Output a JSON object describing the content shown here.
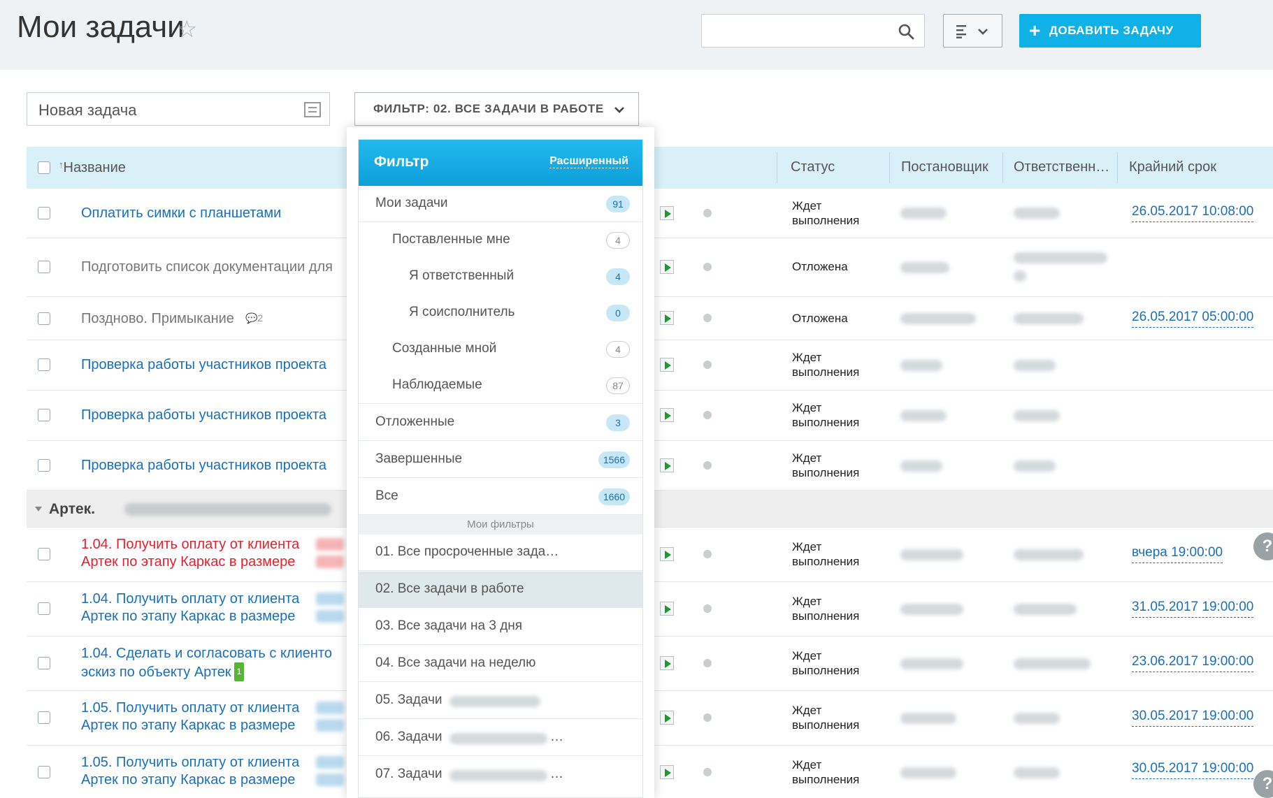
{
  "header": {
    "title": "Мои задачи",
    "add_button": "ДОБАВИТЬ ЗАДАЧУ",
    "search_placeholder": ""
  },
  "toolbar": {
    "new_task_placeholder": "Новая задача",
    "filter_label": "ФИЛЬТР: 02. ВСЕ ЗАДАЧИ В РАБОТЕ"
  },
  "table": {
    "columns": {
      "name": "Название",
      "status": "Статус",
      "creator": "Постановщик",
      "responsible": "Ответственн…",
      "deadline": "Крайний срок"
    },
    "rows": [
      {
        "name": "Оплатить симки с планшетами",
        "status": "Ждет выполнения",
        "deadline": "26.05.2017 10:08:00"
      },
      {
        "name": "Подготовить список документации для",
        "status": "Отложена",
        "deadline": ""
      },
      {
        "name": "Поздново. Примыкание",
        "comments": "2",
        "status": "Отложена",
        "deadline": "26.05.2017 05:00:00"
      },
      {
        "name": "Проверка работы участников проекта",
        "status": "Ждет выполнения",
        "deadline": ""
      },
      {
        "name": "Проверка работы участников проекта",
        "status": "Ждет выполнения",
        "deadline": ""
      },
      {
        "name": "Проверка работы участников проекта",
        "status": "Ждет выполнения",
        "deadline": ""
      }
    ],
    "group": {
      "name": "Артек."
    },
    "group_rows": [
      {
        "line1": "1.04. Получить оплату от клиента",
        "line2": "Артек по этапу Каркас в размере",
        "status": "Ждет выполнения",
        "deadline": "вчера 19:00:00"
      },
      {
        "line1": "1.04. Получить оплату от клиента",
        "line2": "Артек по этапу Каркас в размере",
        "status": "Ждет выполнения",
        "deadline": "31.05.2017 19:00:00"
      },
      {
        "line1": "1.04. Сделать и согласовать с клиенто",
        "line2": "эскиз по объекту Артек",
        "badge": "1",
        "status": "Ждет выполнения",
        "deadline": "23.06.2017 19:00:00"
      },
      {
        "line1": "1.05. Получить оплату от клиента",
        "line2": "Артек по этапу Каркас в размере",
        "status": "Ждет выполнения",
        "deadline": "30.05.2017 19:00:00"
      },
      {
        "line1": "1.05. Получить оплату от клиента",
        "line2": "Артек по этапу Каркас в размере",
        "status": "Ждет выполнения",
        "deadline": "30.05.2017 19:00:00"
      }
    ],
    "status_lines": {
      "wait1": "Ждет",
      "wait2": "выполнения",
      "deferred": "Отложена"
    }
  },
  "filter_menu": {
    "title": "Фильтр",
    "advanced": "Расширенный",
    "items": [
      {
        "label": "Мои задачи",
        "count": "91"
      },
      {
        "label": "Поставленные мне",
        "count": "4"
      },
      {
        "label": "Я ответственный",
        "count": "4"
      },
      {
        "label": "Я соисполнитель",
        "count": "0"
      },
      {
        "label": "Созданные мной",
        "count": "4"
      },
      {
        "label": "Наблюдаемые",
        "count": "87"
      },
      {
        "label": "Отложенные",
        "count": "3"
      },
      {
        "label": "Завершенные",
        "count": "1566"
      },
      {
        "label": "Все",
        "count": "1660"
      }
    ],
    "my_filters_label": "Мои фильтры",
    "my_filters": [
      "01. Все просроченные зада…",
      "02. Все задачи в работе",
      "03. Все задачи на 3 дня",
      "04. Все задачи на неделю",
      "05. Задачи",
      "06. Задачи",
      "07. Задачи"
    ],
    "ellipsis": "…"
  },
  "help": "?",
  "colors": {
    "accent": "#0fb1e6",
    "link": "#1a6fb8",
    "overdue": "#e0232e"
  }
}
